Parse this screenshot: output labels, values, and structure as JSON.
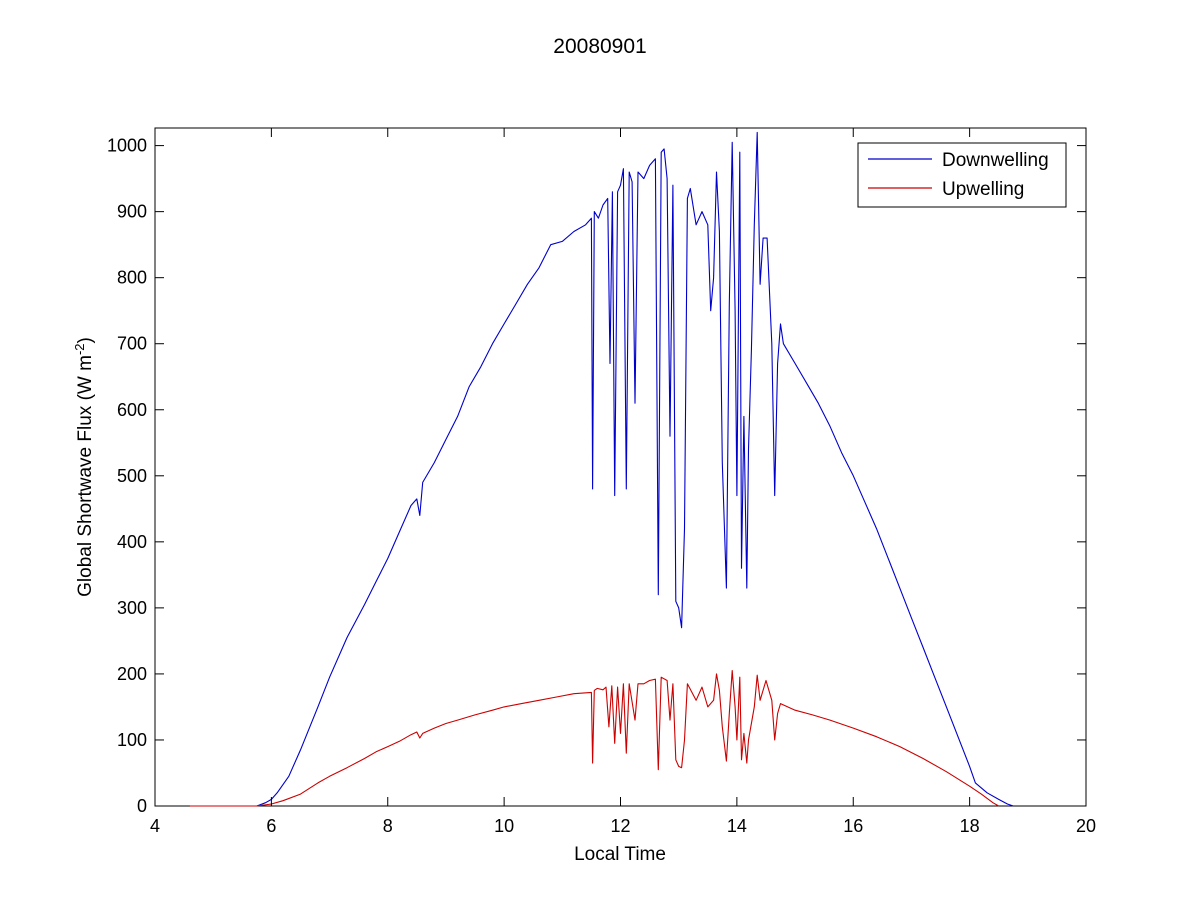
{
  "chart_data": {
    "type": "line",
    "title": "20080901",
    "xlabel": "Local Time",
    "ylabel": "Global Shortwave Flux (W m",
    "ylabel_superscript": "-2",
    "ylabel_suffix": ")",
    "xlim": [
      4,
      20
    ],
    "ylim": [
      0,
      1030
    ],
    "xticks": [
      4,
      6,
      8,
      10,
      12,
      14,
      16,
      18,
      20
    ],
    "yticks": [
      0,
      100,
      200,
      300,
      400,
      500,
      600,
      700,
      800,
      900,
      1000
    ],
    "grid": false,
    "legend_position": "top-right",
    "series": [
      {
        "name": "Downwelling",
        "color": "#0000cc",
        "points": [
          [
            4.6,
            0
          ],
          [
            4.7,
            0
          ],
          [
            5.0,
            0
          ],
          [
            5.5,
            0
          ],
          [
            5.75,
            0
          ],
          [
            5.9,
            5
          ],
          [
            6.0,
            10
          ],
          [
            6.1,
            20
          ],
          [
            6.3,
            45
          ],
          [
            6.5,
            85
          ],
          [
            6.8,
            150
          ],
          [
            7.0,
            195
          ],
          [
            7.3,
            255
          ],
          [
            7.6,
            305
          ],
          [
            7.8,
            340
          ],
          [
            8.0,
            375
          ],
          [
            8.2,
            415
          ],
          [
            8.4,
            455
          ],
          [
            8.5,
            465
          ],
          [
            8.55,
            440
          ],
          [
            8.6,
            490
          ],
          [
            8.8,
            520
          ],
          [
            9.0,
            555
          ],
          [
            9.2,
            590
          ],
          [
            9.4,
            635
          ],
          [
            9.6,
            665
          ],
          [
            9.8,
            700
          ],
          [
            10.0,
            730
          ],
          [
            10.2,
            760
          ],
          [
            10.4,
            790
          ],
          [
            10.6,
            815
          ],
          [
            10.8,
            850
          ],
          [
            11.0,
            855
          ],
          [
            11.2,
            870
          ],
          [
            11.4,
            880
          ],
          [
            11.5,
            890
          ],
          [
            11.52,
            480
          ],
          [
            11.55,
            900
          ],
          [
            11.62,
            890
          ],
          [
            11.7,
            910
          ],
          [
            11.78,
            920
          ],
          [
            11.82,
            670
          ],
          [
            11.86,
            930
          ],
          [
            11.9,
            470
          ],
          [
            11.95,
            930
          ],
          [
            12.0,
            940
          ],
          [
            12.05,
            965
          ],
          [
            12.1,
            480
          ],
          [
            12.15,
            960
          ],
          [
            12.2,
            945
          ],
          [
            12.25,
            610
          ],
          [
            12.3,
            960
          ],
          [
            12.4,
            950
          ],
          [
            12.5,
            970
          ],
          [
            12.6,
            980
          ],
          [
            12.65,
            320
          ],
          [
            12.7,
            990
          ],
          [
            12.75,
            995
          ],
          [
            12.8,
            950
          ],
          [
            12.85,
            560
          ],
          [
            12.9,
            940
          ],
          [
            12.95,
            310
          ],
          [
            13.0,
            300
          ],
          [
            13.05,
            270
          ],
          [
            13.1,
            420
          ],
          [
            13.15,
            920
          ],
          [
            13.2,
            935
          ],
          [
            13.3,
            880
          ],
          [
            13.4,
            900
          ],
          [
            13.5,
            880
          ],
          [
            13.55,
            750
          ],
          [
            13.6,
            800
          ],
          [
            13.65,
            960
          ],
          [
            13.7,
            870
          ],
          [
            13.75,
            520
          ],
          [
            13.82,
            330
          ],
          [
            13.87,
            760
          ],
          [
            13.92,
            1005
          ],
          [
            13.97,
            750
          ],
          [
            14.0,
            470
          ],
          [
            14.05,
            990
          ],
          [
            14.08,
            360
          ],
          [
            14.12,
            590
          ],
          [
            14.17,
            330
          ],
          [
            14.2,
            540
          ],
          [
            14.25,
            690
          ],
          [
            14.3,
            880
          ],
          [
            14.35,
            1020
          ],
          [
            14.4,
            790
          ],
          [
            14.45,
            860
          ],
          [
            14.52,
            860
          ],
          [
            14.6,
            700
          ],
          [
            14.65,
            470
          ],
          [
            14.7,
            670
          ],
          [
            14.75,
            730
          ],
          [
            14.8,
            700
          ],
          [
            15.0,
            670
          ],
          [
            15.2,
            640
          ],
          [
            15.4,
            610
          ],
          [
            15.6,
            575
          ],
          [
            15.8,
            535
          ],
          [
            16.0,
            500
          ],
          [
            16.2,
            460
          ],
          [
            16.4,
            420
          ],
          [
            16.6,
            375
          ],
          [
            16.8,
            330
          ],
          [
            17.0,
            285
          ],
          [
            17.2,
            240
          ],
          [
            17.4,
            195
          ],
          [
            17.6,
            150
          ],
          [
            17.8,
            105
          ],
          [
            18.0,
            60
          ],
          [
            18.1,
            35
          ],
          [
            18.3,
            20
          ],
          [
            18.5,
            10
          ],
          [
            18.65,
            3
          ],
          [
            18.75,
            0
          ]
        ]
      },
      {
        "name": "Upwelling",
        "color": "#cc0000",
        "points": [
          [
            4.6,
            0
          ],
          [
            4.7,
            0
          ],
          [
            5.0,
            0
          ],
          [
            5.5,
            0
          ],
          [
            5.75,
            0
          ],
          [
            6.0,
            3
          ],
          [
            6.2,
            8
          ],
          [
            6.5,
            18
          ],
          [
            6.8,
            35
          ],
          [
            7.0,
            45
          ],
          [
            7.3,
            58
          ],
          [
            7.6,
            72
          ],
          [
            7.8,
            82
          ],
          [
            8.0,
            90
          ],
          [
            8.2,
            98
          ],
          [
            8.4,
            108
          ],
          [
            8.5,
            112
          ],
          [
            8.55,
            103
          ],
          [
            8.6,
            110
          ],
          [
            8.8,
            118
          ],
          [
            9.0,
            125
          ],
          [
            9.2,
            130
          ],
          [
            9.5,
            138
          ],
          [
            9.8,
            145
          ],
          [
            10.0,
            150
          ],
          [
            10.3,
            155
          ],
          [
            10.6,
            160
          ],
          [
            10.9,
            165
          ],
          [
            11.2,
            170
          ],
          [
            11.5,
            172
          ],
          [
            11.52,
            65
          ],
          [
            11.55,
            175
          ],
          [
            11.6,
            178
          ],
          [
            11.7,
            176
          ],
          [
            11.75,
            180
          ],
          [
            11.8,
            120
          ],
          [
            11.85,
            182
          ],
          [
            11.9,
            95
          ],
          [
            11.95,
            180
          ],
          [
            12.0,
            110
          ],
          [
            12.05,
            185
          ],
          [
            12.1,
            80
          ],
          [
            12.15,
            185
          ],
          [
            12.25,
            130
          ],
          [
            12.3,
            185
          ],
          [
            12.4,
            185
          ],
          [
            12.5,
            190
          ],
          [
            12.6,
            192
          ],
          [
            12.65,
            55
          ],
          [
            12.7,
            195
          ],
          [
            12.8,
            190
          ],
          [
            12.85,
            130
          ],
          [
            12.9,
            185
          ],
          [
            12.95,
            70
          ],
          [
            13.0,
            60
          ],
          [
            13.05,
            58
          ],
          [
            13.1,
            100
          ],
          [
            13.15,
            185
          ],
          [
            13.3,
            160
          ],
          [
            13.4,
            180
          ],
          [
            13.5,
            150
          ],
          [
            13.6,
            160
          ],
          [
            13.65,
            200
          ],
          [
            13.7,
            175
          ],
          [
            13.75,
            120
          ],
          [
            13.82,
            68
          ],
          [
            13.87,
            140
          ],
          [
            13.92,
            205
          ],
          [
            13.97,
            150
          ],
          [
            14.0,
            100
          ],
          [
            14.05,
            195
          ],
          [
            14.08,
            70
          ],
          [
            14.12,
            110
          ],
          [
            14.17,
            65
          ],
          [
            14.2,
            100
          ],
          [
            14.3,
            150
          ],
          [
            14.35,
            198
          ],
          [
            14.4,
            160
          ],
          [
            14.5,
            190
          ],
          [
            14.6,
            160
          ],
          [
            14.65,
            100
          ],
          [
            14.7,
            140
          ],
          [
            14.75,
            155
          ],
          [
            15.0,
            145
          ],
          [
            15.3,
            138
          ],
          [
            15.6,
            130
          ],
          [
            16.0,
            118
          ],
          [
            16.4,
            105
          ],
          [
            16.8,
            90
          ],
          [
            17.2,
            72
          ],
          [
            17.6,
            52
          ],
          [
            18.0,
            30
          ],
          [
            18.2,
            18
          ],
          [
            18.4,
            5
          ],
          [
            18.5,
            0
          ]
        ]
      }
    ]
  }
}
